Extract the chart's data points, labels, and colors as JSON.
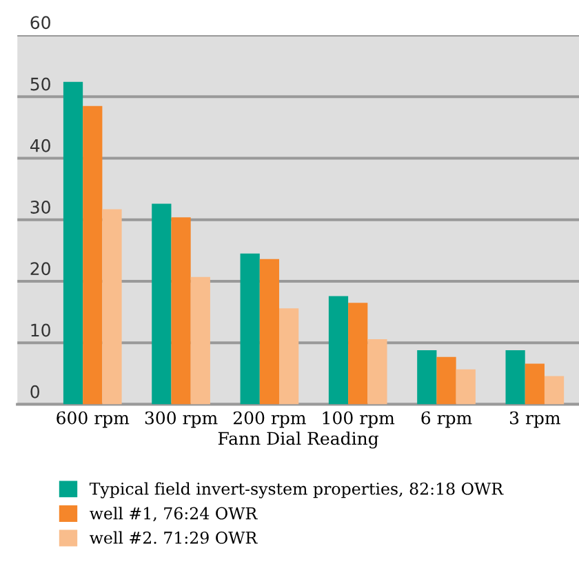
{
  "chart_data": {
    "type": "bar",
    "xlabel": "Fann Dial Reading",
    "categories": [
      "600 rpm",
      "300 rpm",
      "200 rpm",
      "100 rpm",
      "6 rpm",
      "3 rpm"
    ],
    "series": [
      {
        "name": "Typical field invert-system properties, 82:18 OWR",
        "color": "#00a58d",
        "values": [
          52.4,
          32.6,
          24.5,
          17.6,
          8.8,
          8.8
        ]
      },
      {
        "name": "well #1, 76:24 OWR",
        "color": "#f5862a",
        "values": [
          48.5,
          30.4,
          23.6,
          16.5,
          7.7,
          6.6
        ]
      },
      {
        "name": "well #2. 71:29 OWR",
        "color": "#f9bd8c",
        "values": [
          31.7,
          20.7,
          15.6,
          10.6,
          5.7,
          4.6
        ]
      }
    ],
    "ylim": [
      0,
      60
    ],
    "yticks": [
      0,
      10,
      20,
      30,
      40,
      50,
      60
    ],
    "grid": "y",
    "legend": "bottom"
  }
}
